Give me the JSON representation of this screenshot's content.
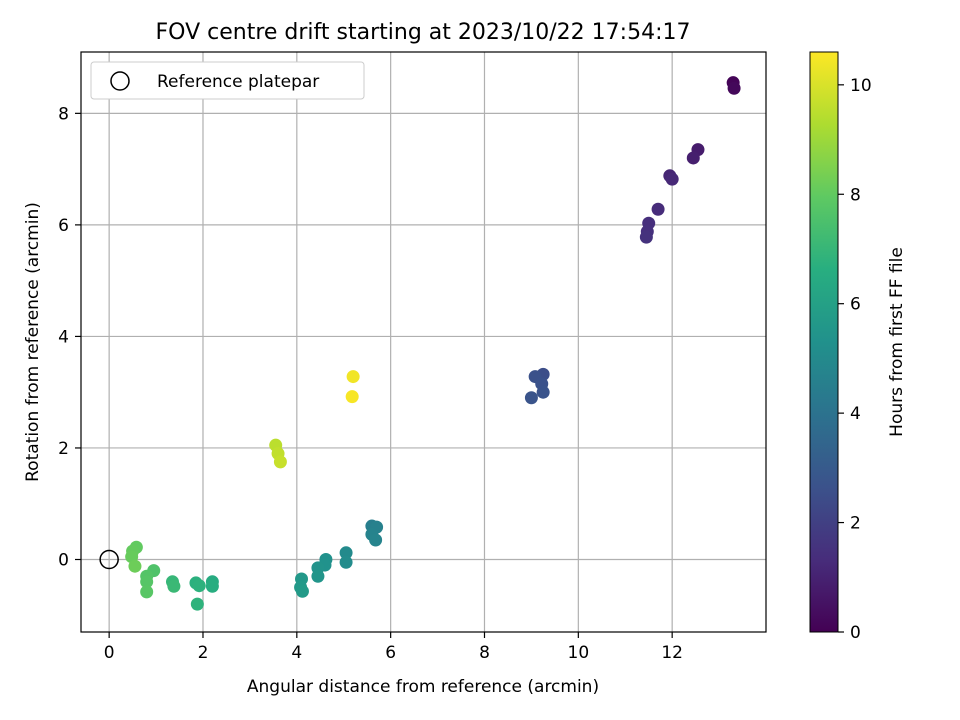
{
  "chart_data": {
    "type": "scatter",
    "title": "FOV centre drift starting at 2023/10/22 17:54:17",
    "xlabel": "Angular distance from reference (arcmin)",
    "ylabel": "Rotation from reference (arcmin)",
    "xlim": [
      -0.6,
      14.0
    ],
    "ylim": [
      -1.3,
      9.1
    ],
    "xticks": [
      0,
      2,
      4,
      6,
      8,
      10,
      12
    ],
    "yticks": [
      0,
      2,
      4,
      6,
      8
    ],
    "grid": true,
    "legend": {
      "placement": "top-left",
      "entries": [
        "Reference platepar"
      ]
    },
    "reference_point": {
      "x": 0,
      "y": 0
    },
    "colorbar": {
      "label": "Hours from first FF file",
      "range": [
        0,
        10.6
      ],
      "ticks": [
        0,
        2,
        4,
        6,
        8,
        10
      ],
      "colormap": "viridis"
    },
    "points": [
      {
        "x": 13.3,
        "y": 8.55,
        "c": 0.1
      },
      {
        "x": 13.32,
        "y": 8.45,
        "c": 0.2
      },
      {
        "x": 12.55,
        "y": 7.35,
        "c": 0.8
      },
      {
        "x": 12.45,
        "y": 7.2,
        "c": 0.9
      },
      {
        "x": 11.95,
        "y": 6.88,
        "c": 1.1
      },
      {
        "x": 12.0,
        "y": 6.82,
        "c": 1.2
      },
      {
        "x": 11.7,
        "y": 6.28,
        "c": 1.3
      },
      {
        "x": 11.5,
        "y": 6.03,
        "c": 1.4
      },
      {
        "x": 11.47,
        "y": 5.88,
        "c": 1.45
      },
      {
        "x": 11.45,
        "y": 5.78,
        "c": 1.5
      },
      {
        "x": 9.25,
        "y": 3.32,
        "c": 2.5
      },
      {
        "x": 9.08,
        "y": 3.28,
        "c": 2.6
      },
      {
        "x": 9.22,
        "y": 3.15,
        "c": 2.65
      },
      {
        "x": 9.25,
        "y": 3.0,
        "c": 2.7
      },
      {
        "x": 9.0,
        "y": 2.9,
        "c": 2.75
      },
      {
        "x": 5.6,
        "y": 0.6,
        "c": 4.5
      },
      {
        "x": 5.7,
        "y": 0.58,
        "c": 4.6
      },
      {
        "x": 5.6,
        "y": 0.45,
        "c": 4.7
      },
      {
        "x": 5.68,
        "y": 0.35,
        "c": 4.75
      },
      {
        "x": 5.05,
        "y": 0.12,
        "c": 5.0
      },
      {
        "x": 5.05,
        "y": -0.05,
        "c": 5.1
      },
      {
        "x": 4.62,
        "y": 0.0,
        "c": 5.3
      },
      {
        "x": 4.6,
        "y": -0.1,
        "c": 5.35
      },
      {
        "x": 4.45,
        "y": -0.15,
        "c": 5.4
      },
      {
        "x": 4.45,
        "y": -0.3,
        "c": 5.5
      },
      {
        "x": 4.1,
        "y": -0.35,
        "c": 5.6
      },
      {
        "x": 4.08,
        "y": -0.5,
        "c": 5.65
      },
      {
        "x": 4.12,
        "y": -0.57,
        "c": 5.7
      },
      {
        "x": 2.2,
        "y": -0.4,
        "c": 6.5
      },
      {
        "x": 2.2,
        "y": -0.48,
        "c": 6.6
      },
      {
        "x": 1.85,
        "y": -0.42,
        "c": 6.7
      },
      {
        "x": 1.92,
        "y": -0.47,
        "c": 6.75
      },
      {
        "x": 1.88,
        "y": -0.8,
        "c": 6.8
      },
      {
        "x": 1.35,
        "y": -0.4,
        "c": 7.0
      },
      {
        "x": 1.38,
        "y": -0.48,
        "c": 7.1
      },
      {
        "x": 0.95,
        "y": -0.2,
        "c": 7.6
      },
      {
        "x": 0.8,
        "y": -0.3,
        "c": 7.7
      },
      {
        "x": 0.8,
        "y": -0.4,
        "c": 7.75
      },
      {
        "x": 0.8,
        "y": -0.58,
        "c": 7.8
      },
      {
        "x": 0.58,
        "y": 0.22,
        "c": 8.0
      },
      {
        "x": 0.5,
        "y": 0.15,
        "c": 8.05
      },
      {
        "x": 0.48,
        "y": 0.05,
        "c": 8.1
      },
      {
        "x": 0.55,
        "y": -0.12,
        "c": 8.2
      },
      {
        "x": 3.55,
        "y": 2.05,
        "c": 9.5
      },
      {
        "x": 3.6,
        "y": 1.9,
        "c": 9.6
      },
      {
        "x": 3.65,
        "y": 1.75,
        "c": 9.7
      },
      {
        "x": 5.2,
        "y": 3.28,
        "c": 10.4
      },
      {
        "x": 5.18,
        "y": 2.92,
        "c": 10.5
      }
    ]
  }
}
